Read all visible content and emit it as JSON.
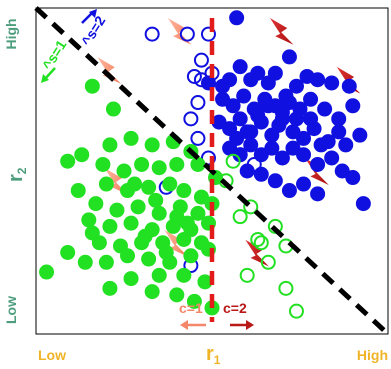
{
  "chart_data": {
    "type": "scatter",
    "title": "",
    "xlabel": "r",
    "xlabel_subscript": "1",
    "ylabel": "r",
    "ylabel_subscript": "2",
    "x_tick_labels": [
      "Low",
      "High"
    ],
    "y_tick_labels": [
      "Low",
      "High"
    ],
    "xlim": [
      0,
      100
    ],
    "ylim": [
      0,
      100
    ],
    "grid": false,
    "vertical_boundary": {
      "x": 50,
      "left_label": "c=1",
      "right_label": "c=2"
    },
    "diagonal_boundary": {
      "from": [
        0,
        100
      ],
      "to": [
        100,
        0
      ],
      "below_label": "s=1",
      "above_label": "s=2",
      "below_label_prefix": "^",
      "above_label_prefix": "^"
    },
    "series": [
      {
        "filled": true,
        "color": "#1010e0",
        "points": [
          [
            57,
            97
          ],
          [
            72,
            85
          ],
          [
            49,
            77
          ],
          [
            53,
            76
          ],
          [
            55,
            78
          ],
          [
            58,
            82
          ],
          [
            61,
            78
          ],
          [
            63,
            80
          ],
          [
            66,
            77
          ],
          [
            68,
            80
          ],
          [
            71,
            73
          ],
          [
            74,
            76
          ],
          [
            77,
            79
          ],
          [
            80,
            78
          ],
          [
            84,
            77
          ],
          [
            89,
            76
          ],
          [
            53,
            72
          ],
          [
            56,
            70
          ],
          [
            59,
            73
          ],
          [
            62,
            69
          ],
          [
            65,
            72
          ],
          [
            68,
            70
          ],
          [
            70,
            68
          ],
          [
            72,
            71
          ],
          [
            75,
            69
          ],
          [
            78,
            72
          ],
          [
            82,
            69
          ],
          [
            86,
            66
          ],
          [
            90,
            70
          ],
          [
            52,
            65
          ],
          [
            55,
            63
          ],
          [
            58,
            66
          ],
          [
            61,
            62
          ],
          [
            64,
            65
          ],
          [
            67,
            61
          ],
          [
            69,
            64
          ],
          [
            73,
            62
          ],
          [
            76,
            60
          ],
          [
            79,
            63
          ],
          [
            83,
            59
          ],
          [
            88,
            58
          ],
          [
            92,
            61
          ],
          [
            55,
            57
          ],
          [
            58,
            55
          ],
          [
            61,
            58
          ],
          [
            64,
            55
          ],
          [
            67,
            57
          ],
          [
            70,
            54
          ],
          [
            73,
            57
          ],
          [
            76,
            55
          ],
          [
            80,
            52
          ],
          [
            84,
            54
          ],
          [
            87,
            50
          ],
          [
            90,
            48
          ],
          [
            60,
            50
          ],
          [
            64,
            49
          ],
          [
            68,
            47
          ],
          [
            72,
            44
          ],
          [
            76,
            46
          ],
          [
            80,
            43
          ],
          [
            63,
            67
          ],
          [
            66,
            70
          ],
          [
            70,
            66
          ],
          [
            74,
            66
          ],
          [
            57,
            60
          ],
          [
            60,
            62
          ],
          [
            78,
            66
          ],
          [
            81,
            58
          ],
          [
            86,
            62
          ],
          [
            93,
            40
          ]
        ]
      },
      {
        "filled": false,
        "color": "#1010e0",
        "points": [
          [
            33,
            92
          ],
          [
            43,
            92
          ],
          [
            49,
            92
          ],
          [
            47,
            84
          ],
          [
            50,
            80
          ],
          [
            45,
            79
          ],
          [
            47,
            78
          ],
          [
            46,
            71
          ],
          [
            44,
            66
          ],
          [
            46,
            60
          ],
          [
            37,
            45
          ],
          [
            49,
            54
          ],
          [
            58,
            55
          ],
          [
            62,
            52
          ],
          [
            44,
            21
          ]
        ]
      },
      {
        "filled": true,
        "color": "#22e022",
        "points": [
          [
            16,
            76
          ],
          [
            22,
            69
          ],
          [
            21,
            58
          ],
          [
            27,
            60
          ],
          [
            33,
            58
          ],
          [
            39,
            59
          ],
          [
            44,
            56
          ],
          [
            30,
            52
          ],
          [
            9,
            53
          ],
          [
            13,
            55
          ],
          [
            19,
            52
          ],
          [
            25,
            50
          ],
          [
            35,
            51
          ],
          [
            40,
            52
          ],
          [
            46,
            52
          ],
          [
            20,
            46
          ],
          [
            26,
            44
          ],
          [
            32,
            45
          ],
          [
            38,
            46
          ],
          [
            42,
            44
          ],
          [
            47,
            42
          ],
          [
            51,
            48
          ],
          [
            12,
            44
          ],
          [
            17,
            40
          ],
          [
            23,
            38
          ],
          [
            29,
            39
          ],
          [
            35,
            37
          ],
          [
            41,
            39
          ],
          [
            46,
            37
          ],
          [
            50,
            40
          ],
          [
            15,
            35
          ],
          [
            21,
            33
          ],
          [
            27,
            34
          ],
          [
            33,
            32
          ],
          [
            39,
            33
          ],
          [
            44,
            32
          ],
          [
            49,
            34
          ],
          [
            18,
            28
          ],
          [
            24,
            27
          ],
          [
            30,
            28
          ],
          [
            36,
            28
          ],
          [
            42,
            29
          ],
          [
            47,
            28
          ],
          [
            20,
            22
          ],
          [
            26,
            24
          ],
          [
            32,
            23
          ],
          [
            38,
            22
          ],
          [
            44,
            24
          ],
          [
            49,
            26
          ],
          [
            27,
            17
          ],
          [
            35,
            18
          ],
          [
            42,
            18
          ],
          [
            48,
            16
          ],
          [
            3,
            19
          ],
          [
            9,
            25
          ],
          [
            14,
            22
          ],
          [
            21,
            14
          ],
          [
            33,
            13
          ],
          [
            40,
            12
          ],
          [
            45,
            10
          ],
          [
            50,
            8
          ],
          [
            31,
            30
          ],
          [
            37,
            25
          ],
          [
            43,
            34
          ],
          [
            16,
            31
          ],
          [
            28,
            46
          ],
          [
            34,
            41
          ],
          [
            40,
            36
          ]
        ]
      },
      {
        "filled": false,
        "color": "#22e022",
        "points": [
          [
            54,
            47
          ],
          [
            56,
            53
          ],
          [
            58,
            36
          ],
          [
            61,
            39
          ],
          [
            63,
            29
          ],
          [
            64,
            28
          ],
          [
            66,
            22
          ],
          [
            71,
            27
          ],
          [
            71,
            14
          ],
          [
            74,
            7
          ],
          [
            60,
            18
          ],
          [
            68,
            33
          ]
        ]
      }
    ],
    "annotations": [
      {
        "type": "light-red-lightning",
        "at": [
          40,
          92
        ]
      },
      {
        "type": "light-red-lightning",
        "at": [
          20,
          80
        ]
      },
      {
        "type": "light-red-lightning",
        "at": [
          22,
          46
        ]
      },
      {
        "type": "light-red-lightning",
        "at": [
          39,
          27
        ]
      },
      {
        "type": "dark-red-lightning",
        "at": [
          69,
          92
        ]
      },
      {
        "type": "dark-red-lightning",
        "at": [
          88,
          77
        ]
      },
      {
        "type": "dark-red-lightning",
        "at": [
          79,
          49
        ]
      },
      {
        "type": "dark-red-lightning",
        "at": [
          62,
          24
        ]
      }
    ]
  }
}
